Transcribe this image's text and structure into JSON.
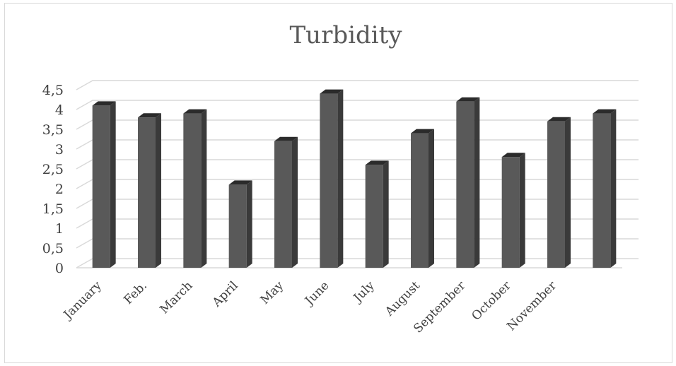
{
  "chart_data": {
    "type": "bar",
    "title": "Turbidity",
    "categories": [
      "January",
      "Feb.",
      "March",
      "April",
      "May",
      "June",
      "July",
      "August",
      "September",
      "October",
      "November",
      ""
    ],
    "values": [
      4.1,
      3.8,
      3.9,
      2.1,
      3.2,
      4.4,
      2.6,
      3.4,
      4.2,
      2.8,
      3.7,
      3.9
    ],
    "ylim": [
      0,
      4.5
    ],
    "yticks": [
      "0",
      "0,5",
      "1",
      "1,5",
      "2",
      "2,5",
      "3",
      "3,5",
      "4",
      "4,5"
    ],
    "grid": true,
    "colors": {
      "bar_front": "#595959",
      "bar_side": "#3a3a3a",
      "bar_top": "#2b2b2b",
      "grid": "#d9d9d9"
    }
  }
}
